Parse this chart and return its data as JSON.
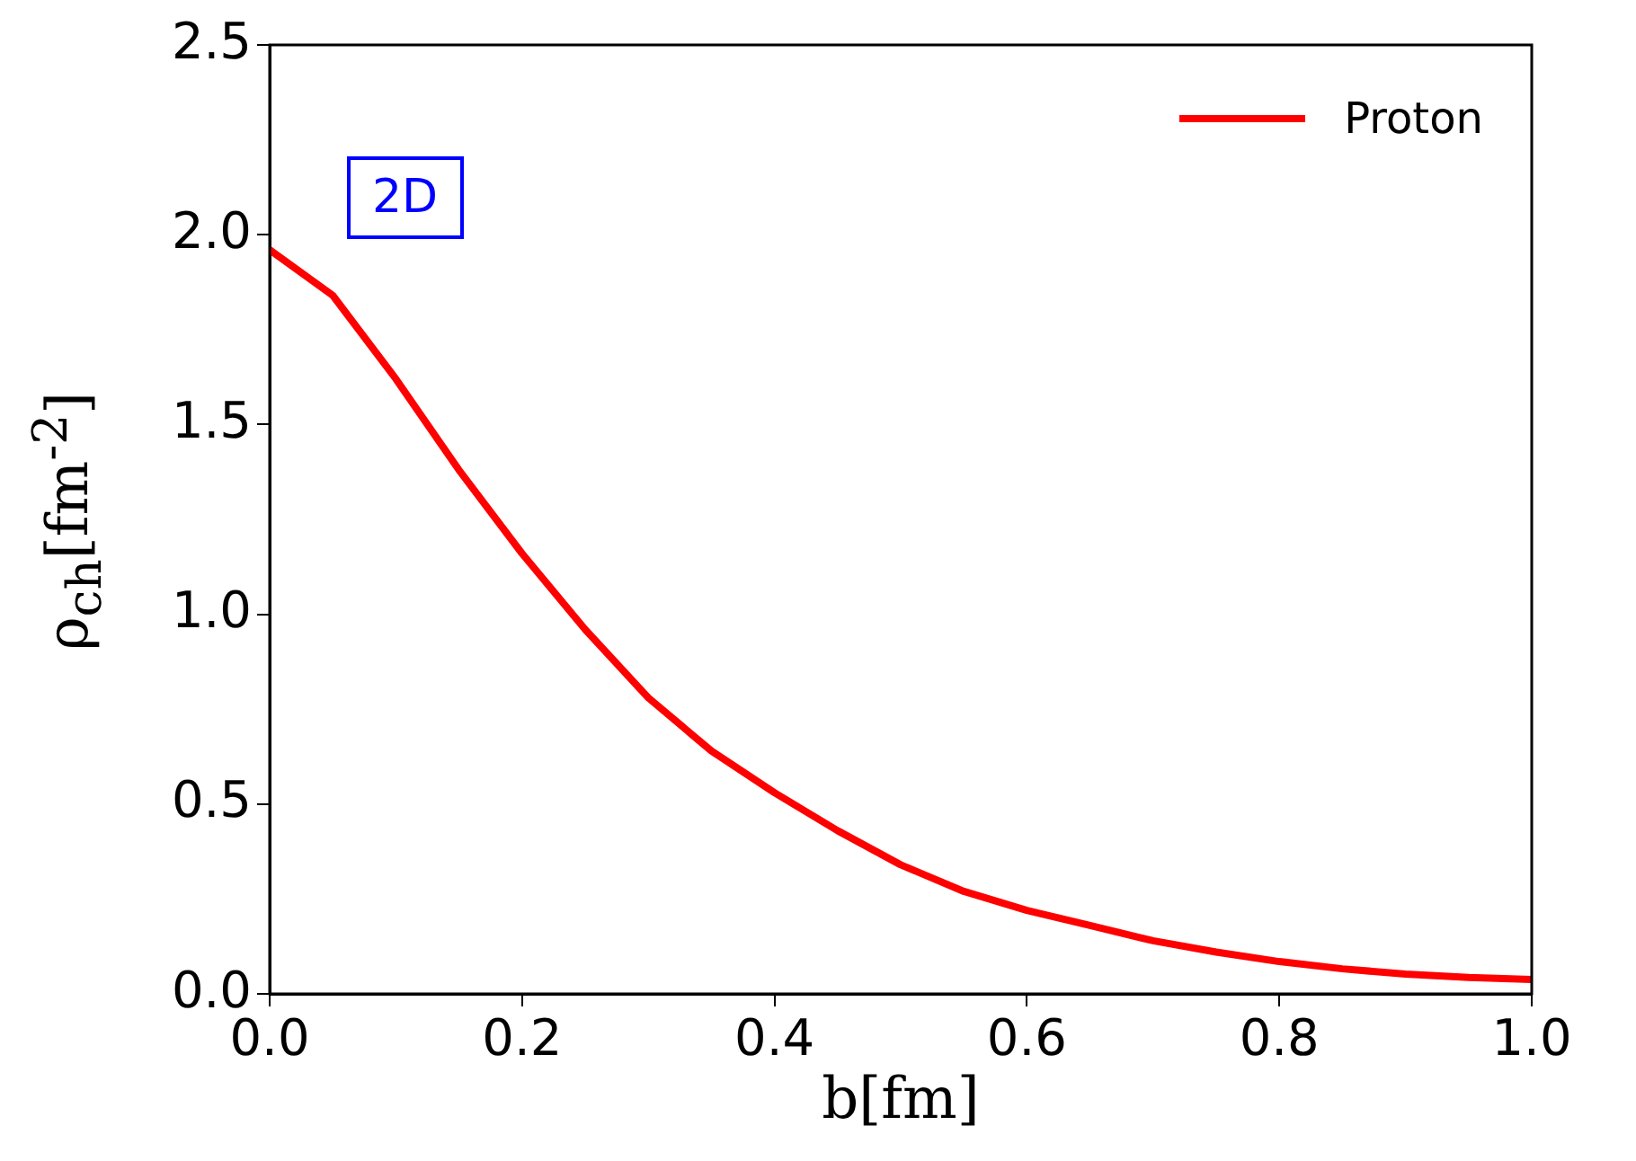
{
  "chart_data": {
    "type": "line",
    "xlabel": "b[fm]",
    "ylabel": "ρ$_{ch}$[fm$^{-2}$]",
    "annotations": [
      "2D"
    ],
    "x": [
      0,
      0.05,
      0.1,
      0.15,
      0.2,
      0.25,
      0.3,
      0.35,
      0.4,
      0.45,
      0.5,
      0.55,
      0.6,
      0.65,
      0.7,
      0.75,
      0.8,
      0.85,
      0.9,
      0.95,
      1.0
    ],
    "series": [
      {
        "name": "Proton",
        "color": "#ff0000",
        "values": [
          1.96,
          1.84,
          1.62,
          1.38,
          1.16,
          0.96,
          0.78,
          0.64,
          0.53,
          0.43,
          0.34,
          0.27,
          0.22,
          0.18,
          0.14,
          0.11,
          0.085,
          0.066,
          0.052,
          0.043,
          0.038
        ]
      }
    ],
    "xlim": [
      0,
      1
    ],
    "xticks": [
      {
        "value": 0,
        "label": "0.0"
      },
      0.2,
      0.4,
      0.6,
      0.8,
      {
        "value": 1,
        "label": "1.0"
      }
    ],
    "ylim": [
      0,
      2.5
    ],
    "yticks": [
      {
        "value": 0,
        "label": "0.0"
      },
      0.5,
      {
        "value": 1,
        "label": "1.0"
      },
      1.5,
      {
        "value": 2,
        "label": "2.0"
      },
      2.5
    ],
    "grid": false,
    "legend": "top right",
    "marker": "none",
    "line_style": "solid"
  }
}
